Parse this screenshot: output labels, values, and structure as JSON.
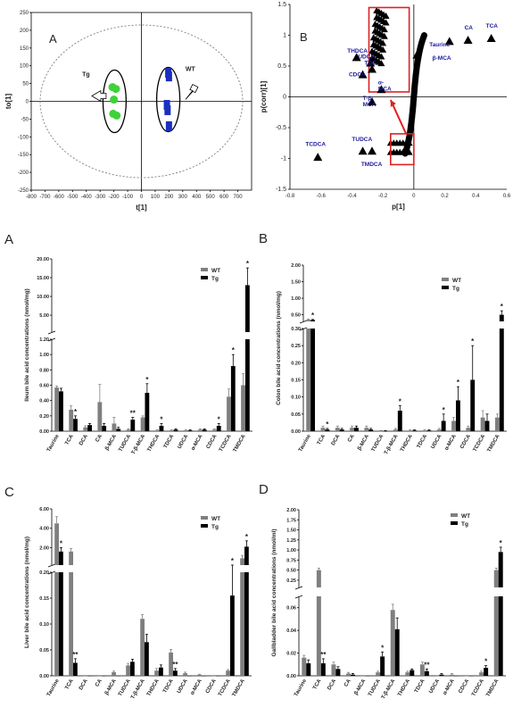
{
  "chart_data": [
    {
      "id": "scores",
      "type": "scatter",
      "panel_letter": "A",
      "xlabel": "t[1]",
      "ylabel": "to[1]",
      "xlim": [
        -800,
        800
      ],
      "ylim": [
        -250,
        250
      ],
      "x_ticks": [
        "-800",
        "-700",
        "-600",
        "-500",
        "-400",
        "-300",
        "-200",
        "-100",
        "0",
        "100",
        "200",
        "300",
        "400",
        "500",
        "600",
        "700"
      ],
      "y_ticks": [
        "250",
        "200",
        "150",
        "100",
        "50",
        "0",
        "-50",
        "-100",
        "-150",
        "-200",
        "-250"
      ],
      "series": [
        {
          "name": "Tg",
          "color": "#3fd23a",
          "points": [
            [
              -210,
              40
            ],
            [
              -185,
              35
            ],
            [
              -200,
              5
            ],
            [
              -205,
              -35
            ],
            [
              -180,
              -40
            ]
          ]
        },
        {
          "name": "WT",
          "color": "#1a2fbf",
          "points": [
            [
              195,
              80
            ],
            [
              200,
              70
            ],
            [
              185,
              -10
            ],
            [
              190,
              -25
            ],
            [
              200,
              -70
            ]
          ]
        }
      ],
      "labels": [
        "Tg",
        "WT"
      ]
    },
    {
      "id": "splot",
      "type": "scatter",
      "panel_letter": "B",
      "xlabel": "p[1]",
      "ylabel": "p(corr)[1]",
      "xlim": [
        -0.8,
        0.6
      ],
      "ylim": [
        -1.5,
        1.5
      ],
      "x_ticks": [
        "-0.8",
        "-0.6",
        "-0.4",
        "-0.2",
        "0",
        "0.2",
        "0.4",
        "0.6"
      ],
      "y_ticks": [
        "1.5",
        "1",
        "0.5",
        "0",
        "-0.5",
        "-1",
        "-1.5"
      ],
      "named_points": [
        {
          "label": "TCA",
          "x": 0.5,
          "y": 0.95
        },
        {
          "label": "CA",
          "x": 0.35,
          "y": 0.92
        },
        {
          "label": "Taurine",
          "x": 0.23,
          "y": 0.9
        },
        {
          "label": "β-MCA",
          "x": 0.02,
          "y": 0.68
        },
        {
          "label": "THDCA",
          "x": -0.37,
          "y": 0.64
        },
        {
          "label": "UDCA",
          "x": -0.28,
          "y": 0.55
        },
        {
          "label": "TDC",
          "x": -0.27,
          "y": 0.45
        },
        {
          "label": "CDCA",
          "x": -0.33,
          "y": 0.36
        },
        {
          "label": "α-MCA",
          "x": -0.21,
          "y": 0.12
        },
        {
          "label": "T-β-MCA",
          "x": -0.27,
          "y": -0.08
        },
        {
          "label": "TCDCA",
          "x": -0.62,
          "y": -0.98
        },
        {
          "label": "TUDCA",
          "x": -0.33,
          "y": -0.88
        },
        {
          "label": "TMDCA",
          "x": -0.27,
          "y": -0.88
        }
      ]
    },
    {
      "id": "ileum",
      "type": "bar",
      "panel_letter": "A",
      "ylabel": "Ileum bile acid concentrations (nmol/mg)",
      "categories": [
        "Taurine",
        "TCA",
        "DCA",
        "CA",
        "β-MCA",
        "TUDCA",
        "T-β-MCA",
        "THDCA",
        "TDCA",
        "UDCA",
        "α-MCA",
        "CDCA",
        "TCDCA",
        "TMDCA"
      ],
      "series": [
        {
          "name": "WT",
          "color": "#7f7f7f",
          "values": [
            0.57,
            0.28,
            0.05,
            0.38,
            0.1,
            0.02,
            0.18,
            0.01,
            0.01,
            0.01,
            0.02,
            0.02,
            0.45,
            0.6
          ],
          "errors": [
            0.02,
            0.05,
            0.02,
            0.23,
            0.08,
            0.01,
            0.02,
            0.01,
            0.01,
            0.01,
            0.01,
            0.01,
            0.1,
            0.15
          ]
        },
        {
          "name": "Tg",
          "color": "#000000",
          "values": [
            0.52,
            0.16,
            0.08,
            0.07,
            0.03,
            0.15,
            0.5,
            0.07,
            0.02,
            0.01,
            0.02,
            0.07,
            0.85,
            13.0
          ],
          "errors": [
            0.04,
            0.04,
            0.02,
            0.03,
            0.02,
            0.03,
            0.12,
            0.03,
            0.01,
            0.01,
            0.01,
            0.03,
            0.15,
            4.6
          ]
        }
      ],
      "stars": [
        {
          "category": "TCA",
          "label": "*"
        },
        {
          "category": "TUDCA",
          "label": "**"
        },
        {
          "category": "T-β-MCA",
          "label": "*"
        },
        {
          "category": "THDCA",
          "label": "*"
        },
        {
          "category": "CDCA",
          "label": "*"
        },
        {
          "category": "TCDCA",
          "label": "*"
        },
        {
          "category": "TMDCA",
          "label": "*"
        }
      ],
      "lower": {
        "ylim": [
          0,
          1.2
        ],
        "ticks": [
          "0.00",
          "0.20",
          "0.40",
          "0.60",
          "0.80",
          "1.00",
          "1.20"
        ]
      },
      "upper": {
        "ylim": [
          0.5,
          20
        ],
        "ticks": [
          "5.00",
          "10.00",
          "15.00",
          "20.00"
        ]
      }
    },
    {
      "id": "colon",
      "type": "bar",
      "panel_letter": "B",
      "ylabel": "Colon bile acid concentrations (nmol/mg)",
      "categories": [
        "Taurine",
        "TCA",
        "DCA",
        "CA",
        "β-MCA",
        "TUDCA",
        "T-β-MCA",
        "THDCA",
        "TDCA",
        "UDCA",
        "α-MCA",
        "CDCA",
        "TCDCA",
        "TMDCA"
      ],
      "series": [
        {
          "name": "WT",
          "color": "#7f7f7f",
          "values": [
            0.35,
            0.01,
            0.01,
            0.01,
            0.01,
            0.0,
            0.005,
            0.002,
            0.002,
            0.005,
            0.03,
            0.01,
            0.04,
            0.04
          ],
          "errors": [
            0.02,
            0.005,
            0.005,
            0.005,
            0.005,
            0.002,
            0.003,
            0.002,
            0.002,
            0.003,
            0.01,
            0.005,
            0.02,
            0.01
          ]
        },
        {
          "name": "Tg",
          "color": "#000000",
          "values": [
            0.34,
            0.005,
            0.005,
            0.01,
            0.005,
            0.0,
            0.06,
            0.002,
            0.002,
            0.03,
            0.09,
            0.15,
            0.03,
            0.5
          ],
          "errors": [
            0.02,
            0.003,
            0.003,
            0.005,
            0.003,
            0.002,
            0.015,
            0.002,
            0.002,
            0.02,
            0.04,
            0.1,
            0.02,
            0.12
          ]
        }
      ],
      "stars": [
        {
          "category": "Taurine",
          "label": "*"
        },
        {
          "category": "TCA",
          "label": "*"
        },
        {
          "category": "T-β-MCA",
          "label": "*"
        },
        {
          "category": "UDCA",
          "label": "*"
        },
        {
          "category": "α-MCA",
          "label": "*"
        },
        {
          "category": "CDCA",
          "label": "*"
        },
        {
          "category": "TMDCA",
          "label": "*"
        }
      ],
      "lower": {
        "ylim": [
          0,
          0.3
        ],
        "ticks": [
          "0.00",
          "0.05",
          "0.10",
          "0.15",
          "0.20",
          "0.25",
          "0.30"
        ]
      },
      "upper": {
        "ylim": [
          0.3,
          2.0
        ],
        "ticks": [
          "0.50",
          "1.00",
          "1.50",
          "2.00"
        ]
      }
    },
    {
      "id": "liver",
      "type": "bar",
      "panel_letter": "C",
      "ylabel": "Liver bile acid concentrations (nmol/mg)",
      "categories": [
        "Taurine",
        "TCA",
        "DCA",
        "CA",
        "β-MCA",
        "TUDCA",
        "T-β-MCA",
        "THDCA",
        "TDCA",
        "UDCA",
        "α-MCA",
        "CDCA",
        "TCDCA",
        "TMDCA"
      ],
      "series": [
        {
          "name": "WT",
          "color": "#7f7f7f",
          "values": [
            4.5,
            1.6,
            0.0,
            0.0,
            0.007,
            0.02,
            0.11,
            0.01,
            0.045,
            0.005,
            0.002,
            0.0,
            0.01,
            0.9
          ],
          "errors": [
            0.7,
            0.3,
            0.0,
            0.0,
            0.002,
            0.004,
            0.008,
            0.004,
            0.006,
            0.002,
            0.001,
            0.0,
            0.002,
            0.3
          ]
        },
        {
          "name": "Tg",
          "color": "#000000",
          "values": [
            1.6,
            0.025,
            0.0,
            0.0,
            0.0,
            0.027,
            0.065,
            0.016,
            0.01,
            0.0,
            0.0,
            0.0,
            0.155,
            2.1
          ],
          "errors": [
            0.4,
            0.008,
            0.0,
            0.0,
            0.0,
            0.005,
            0.015,
            0.005,
            0.004,
            0.0,
            0.0,
            0.0,
            0.05,
            0.6
          ]
        }
      ],
      "stars": [
        {
          "category": "Taurine",
          "label": "*"
        },
        {
          "category": "TCA",
          "label": "**"
        },
        {
          "category": "TDCA",
          "label": "**"
        },
        {
          "category": "TCDCA",
          "label": "*"
        },
        {
          "category": "TMDCA",
          "label": "*"
        }
      ],
      "lower": {
        "ylim": [
          0,
          0.2
        ],
        "ticks": [
          "0.00",
          "0.05",
          "0.10",
          "0.15",
          "0.20"
        ]
      },
      "upper": {
        "ylim": [
          0.2,
          6.0
        ],
        "ticks": [
          "2.00",
          "4.00",
          "6.00"
        ]
      }
    },
    {
      "id": "gallbladder",
      "type": "bar",
      "panel_letter": "D",
      "ylabel": "Gallbladder bile acid concentrations (nmol/ml)",
      "categories": [
        "Taurine",
        "TCA",
        "DCA",
        "CA",
        "β-MCA",
        "TUDCA",
        "T-β-MCA",
        "THDCA",
        "TDCA",
        "UDCA",
        "α-MCA",
        "CDCA",
        "TCDCA",
        "TMDCA"
      ],
      "series": [
        {
          "name": "WT",
          "color": "#7f7f7f",
          "values": [
            0.016,
            0.5,
            0.01,
            0.002,
            0.0,
            0.003,
            0.058,
            0.003,
            0.01,
            0.0,
            0.001,
            0.0,
            0.003,
            0.5
          ],
          "errors": [
            0.002,
            0.05,
            0.002,
            0.001,
            0.0,
            0.001,
            0.005,
            0.001,
            0.002,
            0.0,
            0.001,
            0.0,
            0.001,
            0.05
          ]
        },
        {
          "name": "Tg",
          "color": "#000000",
          "values": [
            0.011,
            0.011,
            0.006,
            0.001,
            0.0,
            0.017,
            0.041,
            0.005,
            0.004,
            0.001,
            0.0,
            0.0,
            0.007,
            0.95
          ],
          "errors": [
            0.003,
            0.004,
            0.002,
            0.001,
            0.0,
            0.004,
            0.01,
            0.001,
            0.002,
            0.001,
            0.0,
            0.0,
            0.002,
            0.12
          ]
        }
      ],
      "stars": [
        {
          "category": "TCA",
          "label": "**"
        },
        {
          "category": "TUDCA",
          "label": "*"
        },
        {
          "category": "TDCA",
          "label": "**"
        },
        {
          "category": "TCDCA",
          "label": "*"
        },
        {
          "category": "TMDCA",
          "label": "*"
        }
      ],
      "lower": {
        "ylim": [
          0,
          0.07
        ],
        "ticks": [
          "0.00",
          "0.02",
          "0.04",
          "0.06"
        ]
      },
      "upper": {
        "ylim": [
          0.07,
          2.0
        ],
        "ticks": [
          "0.25",
          "0.50",
          "0.75",
          "1.00",
          "1.25",
          "1.50",
          "1.75",
          "2.00"
        ]
      }
    }
  ]
}
